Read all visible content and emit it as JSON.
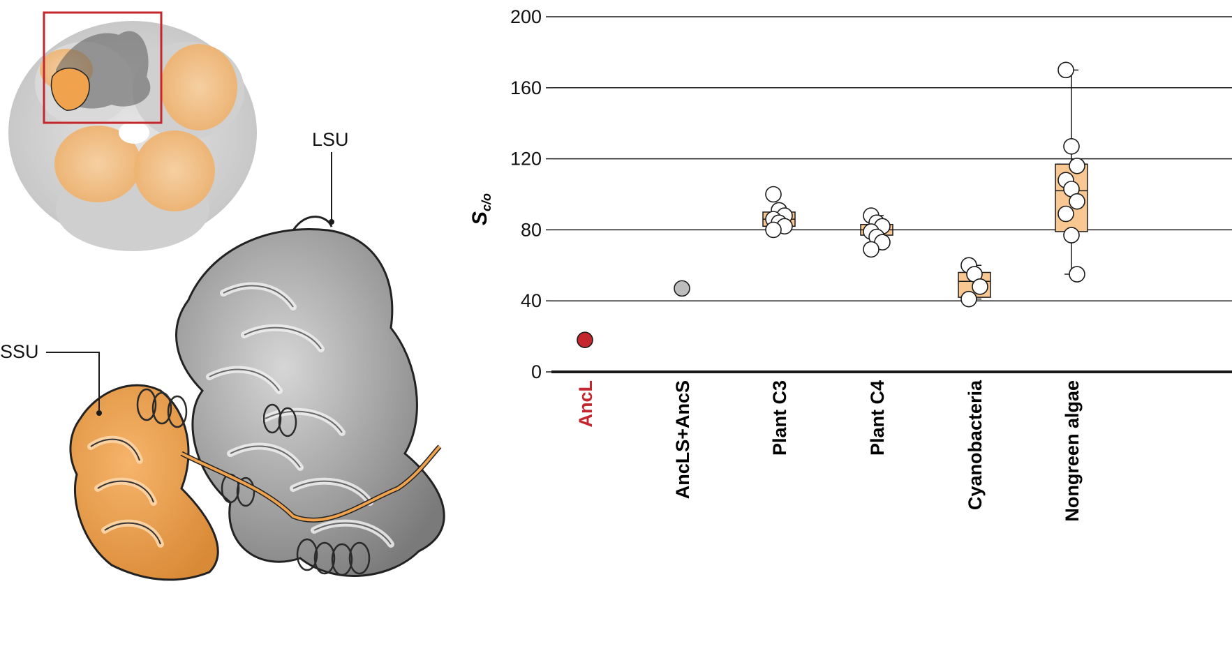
{
  "structure_panel": {
    "lsu_label": "LSU",
    "ssu_label": "SSU",
    "colors": {
      "lsu": "#a8a8a8",
      "ssu": "#f0a24d",
      "inset_frame": "#c4262e",
      "holoenzyme_gray": "#d4d4d4",
      "holoenzyme_orange": "#f4c28e"
    }
  },
  "chart_data": {
    "type": "box",
    "ylabel": "S",
    "ylabel_subscript": "c/o",
    "ylim": [
      0,
      200
    ],
    "yticks": [
      0,
      40,
      80,
      120,
      160,
      200
    ],
    "grid": "horizontal",
    "categories": [
      {
        "name": "AncL",
        "label_color": "#c4262e",
        "box": null,
        "points": [
          18
        ],
        "point_fill": "#c4262e"
      },
      {
        "name": "AncLS+AncS",
        "label_color": "#000000",
        "box": null,
        "points": [
          47
        ],
        "point_fill": "#bdbdbd"
      },
      {
        "name": "Plant C3",
        "label_color": "#000000",
        "box": {
          "q1": 82,
          "median": 86,
          "q3": 90,
          "whisker_low": 80,
          "whisker_high": 90
        },
        "points": [
          100,
          91,
          88,
          86,
          84,
          82,
          80
        ],
        "point_fill": "#ffffff"
      },
      {
        "name": "Plant C4",
        "label_color": "#000000",
        "box": {
          "q1": 77,
          "median": 80,
          "q3": 83,
          "whisker_low": 70,
          "whisker_high": 88
        },
        "points": [
          88,
          84,
          82,
          79,
          76,
          73,
          69
        ],
        "point_fill": "#ffffff"
      },
      {
        "name": "Cyanobacteria",
        "label_color": "#000000",
        "box": {
          "q1": 42,
          "median": 51,
          "q3": 56,
          "whisker_low": 41,
          "whisker_high": 60
        },
        "points": [
          60,
          55,
          48,
          41
        ],
        "point_fill": "#ffffff"
      },
      {
        "name": "Nongreen algae",
        "label_color": "#000000",
        "box": {
          "q1": 79,
          "median": 102,
          "q3": 117,
          "whisker_low": 55,
          "whisker_high": 170
        },
        "points": [
          170,
          127,
          116,
          108,
          103,
          96,
          89,
          77,
          55
        ],
        "point_fill": "#ffffff"
      }
    ],
    "colors": {
      "box_fill": "#f9c792",
      "box_stroke": "#1a1a1a",
      "grid": "#1a1a1a",
      "point_stroke": "#1a1a1a"
    }
  }
}
